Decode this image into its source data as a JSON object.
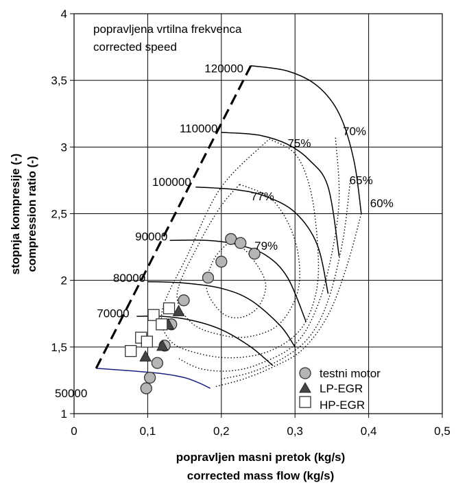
{
  "chart_data": {
    "type": "scatter",
    "subtype": "compressor-map",
    "annotations": [
      "popravljena vrtilna frekvenca",
      "corrected speed"
    ],
    "xlabel": [
      "popravljen masni pretok (kg/s)",
      "corrected mass flow (kg/s)"
    ],
    "ylabel": [
      "stopnja kompresije (-)",
      "compression ratio (-)"
    ],
    "xlim": [
      0,
      0.5
    ],
    "ylim": [
      1,
      4
    ],
    "x_ticks": [
      0,
      0.1,
      0.2,
      0.3,
      0.4,
      0.5
    ],
    "x_tick_labels": [
      "0",
      "0,1",
      "0,2",
      "0,3",
      "0,4",
      "0,5"
    ],
    "y_ticks": [
      1,
      1.5,
      2,
      2.5,
      3,
      3.5,
      4
    ],
    "y_tick_labels": [
      "1",
      "1,5",
      "2",
      "2,5",
      "3",
      "3,5",
      "4"
    ],
    "grid": true,
    "legend_position": "bottom-right",
    "colors": {
      "speed_line": "#000000",
      "speed_line_50000": "#1a237e",
      "marker_fill": "#b5b5b5",
      "marker_dark": "#333333"
    },
    "surge_line": [
      [
        0.03,
        1.34
      ],
      [
        0.24,
        3.61
      ]
    ],
    "speed_lines": [
      {
        "label": "50000",
        "points": [
          [
            0.03,
            1.34
          ],
          [
            0.08,
            1.32
          ],
          [
            0.12,
            1.3
          ],
          [
            0.15,
            1.27
          ],
          [
            0.17,
            1.23
          ],
          [
            0.185,
            1.19
          ]
        ]
      },
      {
        "label": "70000",
        "points": [
          [
            0.085,
            1.73
          ],
          [
            0.12,
            1.73
          ],
          [
            0.16,
            1.7
          ],
          [
            0.2,
            1.63
          ],
          [
            0.24,
            1.5
          ],
          [
            0.27,
            1.36
          ]
        ]
      },
      {
        "label": "80000",
        "points": [
          [
            0.1,
            1.99
          ],
          [
            0.15,
            1.98
          ],
          [
            0.2,
            1.94
          ],
          [
            0.24,
            1.85
          ],
          [
            0.28,
            1.66
          ],
          [
            0.3,
            1.5
          ]
        ]
      },
      {
        "label": "90000",
        "points": [
          [
            0.13,
            2.3
          ],
          [
            0.18,
            2.3
          ],
          [
            0.22,
            2.27
          ],
          [
            0.26,
            2.19
          ],
          [
            0.29,
            2.02
          ],
          [
            0.315,
            1.69
          ]
        ]
      },
      {
        "label": "100000",
        "points": [
          [
            0.165,
            2.7
          ],
          [
            0.22,
            2.68
          ],
          [
            0.26,
            2.63
          ],
          [
            0.3,
            2.51
          ],
          [
            0.33,
            2.27
          ],
          [
            0.345,
            1.9
          ]
        ]
      },
      {
        "label": "110000",
        "points": [
          [
            0.2,
            3.11
          ],
          [
            0.25,
            3.09
          ],
          [
            0.29,
            3.02
          ],
          [
            0.32,
            2.9
          ],
          [
            0.345,
            2.7
          ],
          [
            0.36,
            2.18
          ]
        ]
      },
      {
        "label": "120000",
        "points": [
          [
            0.24,
            3.61
          ],
          [
            0.29,
            3.57
          ],
          [
            0.33,
            3.46
          ],
          [
            0.36,
            3.25
          ],
          [
            0.38,
            2.9
          ],
          [
            0.39,
            2.5
          ]
        ]
      }
    ],
    "efficiency_islands": [
      {
        "label": "79%",
        "points": [
          [
            0.215,
            2.31
          ],
          [
            0.24,
            2.18
          ],
          [
            0.26,
            1.98
          ],
          [
            0.25,
            1.8
          ],
          [
            0.225,
            1.72
          ],
          [
            0.2,
            1.76
          ],
          [
            0.18,
            1.94
          ],
          [
            0.19,
            2.16
          ],
          [
            0.215,
            2.31
          ]
        ]
      },
      {
        "label": "77%",
        "points": [
          [
            0.225,
            2.72
          ],
          [
            0.27,
            2.6
          ],
          [
            0.3,
            2.3
          ],
          [
            0.305,
            1.95
          ],
          [
            0.28,
            1.68
          ],
          [
            0.24,
            1.58
          ],
          [
            0.2,
            1.59
          ],
          [
            0.16,
            1.68
          ],
          [
            0.14,
            1.9
          ],
          [
            0.17,
            2.28
          ],
          [
            0.2,
            2.56
          ],
          [
            0.225,
            2.72
          ]
        ]
      },
      {
        "label": "75%",
        "points": [
          [
            0.265,
            3.06
          ],
          [
            0.3,
            2.95
          ],
          [
            0.32,
            2.7
          ],
          [
            0.33,
            2.32
          ],
          [
            0.33,
            1.95
          ],
          [
            0.31,
            1.65
          ],
          [
            0.27,
            1.48
          ],
          [
            0.22,
            1.42
          ],
          [
            0.17,
            1.45
          ],
          [
            0.13,
            1.55
          ],
          [
            0.12,
            1.78
          ],
          [
            0.155,
            2.2
          ],
          [
            0.2,
            2.7
          ],
          [
            0.265,
            3.06
          ]
        ]
      },
      {
        "label": "70%",
        "points": [
          [
            0.355,
            3.07
          ],
          [
            0.36,
            2.62
          ],
          [
            0.35,
            2.2
          ],
          [
            0.33,
            1.8
          ],
          [
            0.3,
            1.52
          ],
          [
            0.25,
            1.37
          ],
          [
            0.21,
            1.32
          ],
          [
            0.17,
            1.34
          ],
          [
            0.14,
            1.42
          ]
        ]
      },
      {
        "label": "65%",
        "points": [
          [
            0.375,
            2.75
          ],
          [
            0.365,
            2.3
          ],
          [
            0.345,
            1.85
          ],
          [
            0.32,
            1.58
          ],
          [
            0.285,
            1.42
          ],
          [
            0.24,
            1.31
          ],
          [
            0.2,
            1.26
          ]
        ]
      },
      {
        "label": "60%",
        "points": [
          [
            0.39,
            2.5
          ],
          [
            0.37,
            2.1
          ],
          [
            0.345,
            1.74
          ],
          [
            0.31,
            1.48
          ],
          [
            0.27,
            1.35
          ],
          [
            0.23,
            1.26
          ],
          [
            0.19,
            1.2
          ]
        ]
      }
    ],
    "series": [
      {
        "name": "testni motor",
        "marker": "circle",
        "points": [
          [
            0.098,
            1.19
          ],
          [
            0.103,
            1.27
          ],
          [
            0.113,
            1.38
          ],
          [
            0.123,
            1.51
          ],
          [
            0.132,
            1.67
          ],
          [
            0.149,
            1.85
          ],
          [
            0.182,
            2.02
          ],
          [
            0.2,
            2.14
          ],
          [
            0.213,
            2.31
          ],
          [
            0.226,
            2.28
          ],
          [
            0.245,
            2.2
          ]
        ]
      },
      {
        "name": "LP-EGR",
        "marker": "triangle",
        "points": [
          [
            0.097,
            1.43
          ],
          [
            0.12,
            1.51
          ],
          [
            0.128,
            1.67
          ],
          [
            0.142,
            1.77
          ]
        ]
      },
      {
        "name": "HP-EGR",
        "marker": "square",
        "points": [
          [
            0.077,
            1.47
          ],
          [
            0.091,
            1.57
          ],
          [
            0.099,
            1.54
          ],
          [
            0.108,
            1.74
          ],
          [
            0.119,
            1.67
          ],
          [
            0.129,
            1.79
          ]
        ]
      }
    ]
  }
}
